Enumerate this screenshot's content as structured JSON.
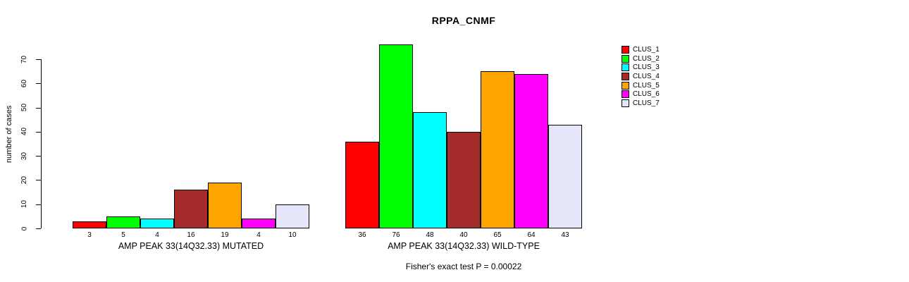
{
  "figure": {
    "title": "RPPA_CNMF",
    "footer": "Fisher's exact test P = 0.00022"
  },
  "chart_data": {
    "type": "bar",
    "title": "RPPA_CNMF",
    "ylabel": "number of cases",
    "xlabel": "",
    "ylim": [
      0,
      76
    ],
    "yticks": [
      0,
      10,
      20,
      30,
      40,
      50,
      60,
      70
    ],
    "grid": false,
    "legend_position": "right",
    "categories": [
      "AMP PEAK 33(14Q32.33) MUTATED",
      "AMP PEAK 33(14Q32.33) WILD-TYPE"
    ],
    "series": [
      {
        "name": "CLUS_1",
        "color": "#FF0000",
        "values": [
          3,
          36
        ]
      },
      {
        "name": "CLUS_2",
        "color": "#00FF00",
        "values": [
          5,
          76
        ]
      },
      {
        "name": "CLUS_3",
        "color": "#00FFFF",
        "values": [
          4,
          48
        ]
      },
      {
        "name": "CLUS_4",
        "color": "#A52A2A",
        "values": [
          16,
          40
        ]
      },
      {
        "name": "CLUS_5",
        "color": "#FFA500",
        "values": [
          19,
          65
        ]
      },
      {
        "name": "CLUS_6",
        "color": "#FF00FF",
        "values": [
          4,
          64
        ]
      },
      {
        "name": "CLUS_7",
        "color": "#E6E6FA",
        "values": [
          10,
          43
        ]
      }
    ],
    "bar_value_labels_shown": true,
    "annotation": "Fisher's exact test P = 0.00022"
  }
}
